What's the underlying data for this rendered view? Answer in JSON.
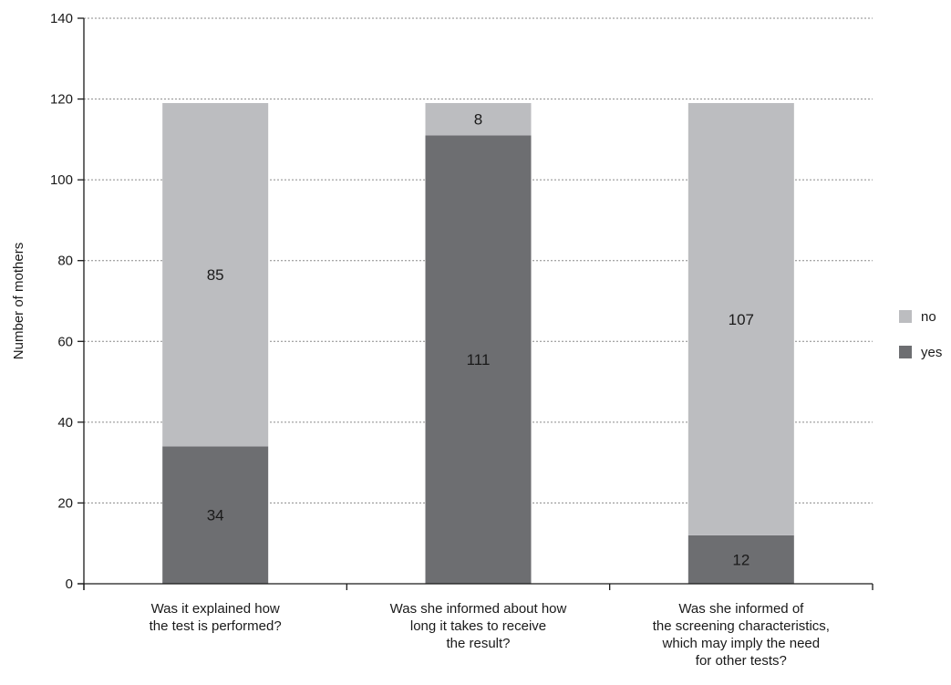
{
  "chart_data": {
    "type": "bar",
    "stacked": true,
    "title": "",
    "xlabel": "",
    "ylabel": "Number of mothers",
    "ylim": [
      0,
      140
    ],
    "yticks": [
      0,
      20,
      40,
      60,
      80,
      100,
      120,
      140
    ],
    "grid": "horizontal dotted",
    "legend_position": "right",
    "categories": [
      [
        "Was it explained how",
        "the test is performed?"
      ],
      [
        "Was she informed about how",
        "long it takes to receive",
        "the result?"
      ],
      [
        "Was she informed of",
        "the screening characteristics,",
        "which may imply the need",
        "for other tests?"
      ]
    ],
    "series": [
      {
        "name": "yes",
        "color": "#6d6e71",
        "values": [
          34,
          111,
          12
        ]
      },
      {
        "name": "no",
        "color": "#bcbdc0",
        "values": [
          85,
          8,
          107
        ]
      }
    ],
    "legend_order": [
      "no",
      "yes"
    ]
  }
}
